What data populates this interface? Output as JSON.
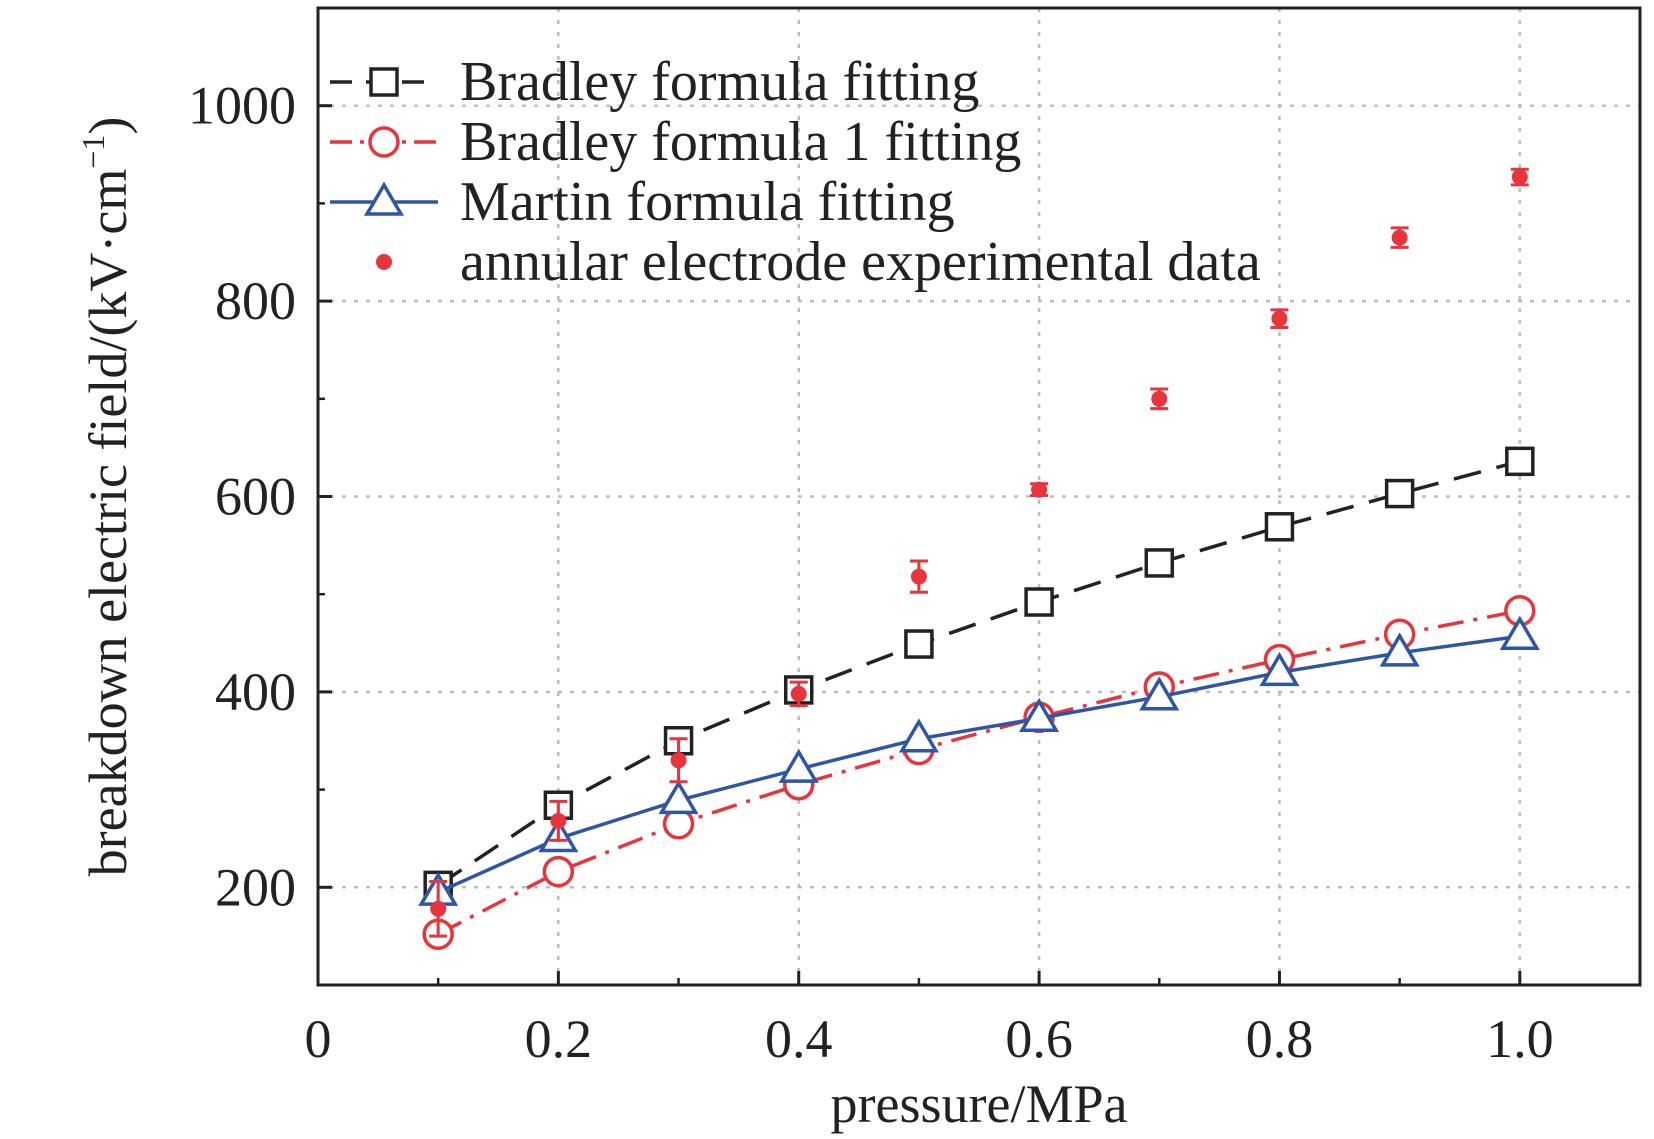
{
  "chart_data": {
    "type": "line",
    "xlabel": "pressure/MPa",
    "ylabel_main": "breakdown electric field/(kV·cm",
    "ylabel_sup": "−1",
    "ylabel_close": ")",
    "xlim": [
      0,
      1.1
    ],
    "ylim": [
      100,
      1100
    ],
    "xticks": [
      0,
      0.2,
      0.4,
      0.6,
      0.8,
      1.0
    ],
    "xtick_labels": [
      "0",
      "0.2",
      "0.4",
      "0.6",
      "0.8",
      "1.0"
    ],
    "yticks": [
      200,
      400,
      600,
      800,
      1000
    ],
    "ytick_labels": [
      "200",
      "400",
      "600",
      "800",
      "1000"
    ],
    "grid": true,
    "legend_position": "top-left",
    "series": [
      {
        "name": "Bradley formula fitting",
        "color": "#222222",
        "marker": "square",
        "dash": "long-dash",
        "x": [
          0.1,
          0.2,
          0.3,
          0.4,
          0.5,
          0.6,
          0.7,
          0.8,
          0.9,
          1.0
        ],
        "y": [
          202,
          284,
          350,
          402,
          449,
          492,
          532,
          569,
          603,
          636
        ]
      },
      {
        "name": "Bradley formula 1 fitting",
        "color": "#e8343a",
        "marker": "circle",
        "dash": "dash-dot",
        "x": [
          0.1,
          0.2,
          0.3,
          0.4,
          0.5,
          0.6,
          0.7,
          0.8,
          0.9,
          1.0
        ],
        "y": [
          152,
          216,
          265,
          305,
          341,
          374,
          405,
          433,
          459,
          483
        ]
      },
      {
        "name": "Martin formula fitting",
        "color": "#2f56a6",
        "marker": "triangle",
        "dash": "solid",
        "x": [
          0.1,
          0.2,
          0.3,
          0.4,
          0.5,
          0.6,
          0.7,
          0.8,
          0.9,
          1.0
        ],
        "y": [
          195,
          250,
          289,
          321,
          352,
          373,
          395,
          420,
          440,
          457
        ]
      },
      {
        "name": "annular electrode experimental data",
        "color": "#e8343a",
        "marker": "dot",
        "dash": "none",
        "x": [
          0.1,
          0.2,
          0.3,
          0.4,
          0.5,
          0.6,
          0.7,
          0.8,
          0.9,
          1.0
        ],
        "y": [
          178,
          268,
          330,
          398,
          518,
          607,
          700,
          782,
          865,
          927
        ],
        "err": [
          28,
          20,
          22,
          12,
          16,
          6,
          10,
          9,
          10,
          8
        ]
      }
    ]
  }
}
